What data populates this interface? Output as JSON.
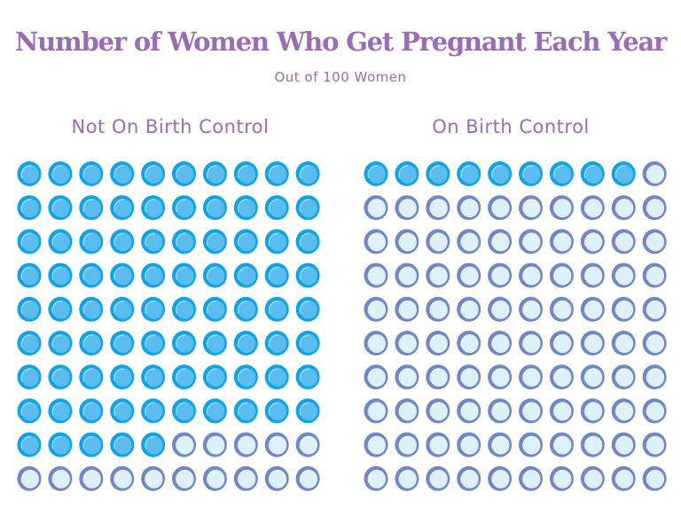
{
  "chart_data": {
    "type": "pictogram",
    "title": "Number of Women Who Get Pregnant Each Year",
    "subtitle": "Out of 100 Women",
    "total_per_panel": 100,
    "grid": {
      "rows": 10,
      "columns": 10
    },
    "panels": [
      {
        "label": "Not On Birth Control",
        "value": 85
      },
      {
        "label": "On Birth Control",
        "value": 9
      }
    ],
    "colors": {
      "filled_outer": "#0ea3e8",
      "filled_inner": "#5bbcf0",
      "empty_outer": "#6f87c9",
      "empty_inner": "#def0f8",
      "text": "#9b6bb3"
    }
  }
}
